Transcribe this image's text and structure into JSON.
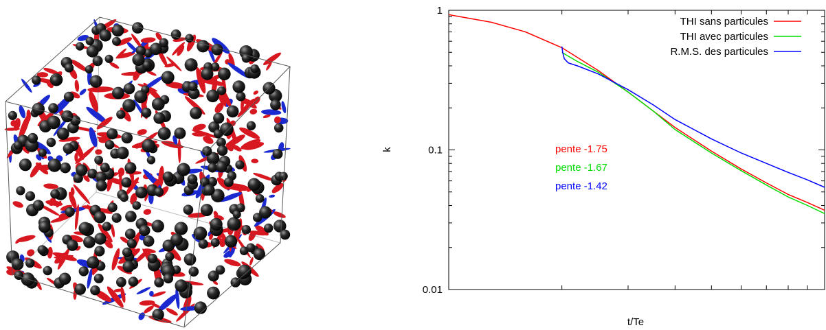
{
  "figure": {
    "left_panel": {
      "description_icon": "turbulence-cube-with-particles"
    }
  },
  "chart_data": {
    "type": "line",
    "title": "",
    "xlabel": "t/Te",
    "ylabel": "k",
    "yscale": "log",
    "xscale": "log",
    "ylim": [
      0.01,
      1
    ],
    "xlim": [
      1,
      10
    ],
    "grid": false,
    "legend_placement": "top-right",
    "y_ticks": [
      {
        "value": 1,
        "label": "1"
      },
      {
        "value": 0.1,
        "label": "0.1"
      },
      {
        "value": 0.01,
        "label": "0.01"
      }
    ],
    "series": [
      {
        "name": "THI sans particules",
        "color": "#ff0000",
        "x": [
          1.0,
          1.3,
          1.6,
          2.0,
          2.5,
          3.0,
          3.5,
          4.0,
          5.0,
          6.0,
          7.0,
          8.0,
          9.0,
          10.0
        ],
        "y": [
          0.93,
          0.82,
          0.7,
          0.54,
          0.37,
          0.26,
          0.19,
          0.145,
          0.098,
          0.073,
          0.058,
          0.048,
          0.042,
          0.037
        ]
      },
      {
        "name": "THI avec particules",
        "color": "#00dd00",
        "x": [
          2.0,
          2.05,
          2.2,
          2.5,
          3.0,
          3.5,
          4.0,
          5.0,
          6.0,
          7.0,
          8.0,
          9.0,
          10.0
        ],
        "y": [
          0.5,
          0.48,
          0.43,
          0.36,
          0.26,
          0.19,
          0.14,
          0.095,
          0.071,
          0.056,
          0.046,
          0.04,
          0.035
        ]
      },
      {
        "name": "R.M.S. des particules",
        "color": "#0000ff",
        "x": [
          2.0,
          2.01,
          2.03,
          2.08,
          2.2,
          2.5,
          3.0,
          3.5,
          4.0,
          5.0,
          6.0,
          7.0,
          8.0,
          9.0,
          10.0
        ],
        "y": [
          0.55,
          0.5,
          0.45,
          0.42,
          0.4,
          0.35,
          0.27,
          0.21,
          0.165,
          0.12,
          0.095,
          0.08,
          0.069,
          0.061,
          0.054
        ]
      }
    ],
    "annotations": [
      {
        "text": "pente -1.75",
        "color": "#ff0000"
      },
      {
        "text": "pente -1.67",
        "color": "#00dd00"
      },
      {
        "text": "pente -1.42",
        "color": "#0000ff"
      }
    ]
  }
}
